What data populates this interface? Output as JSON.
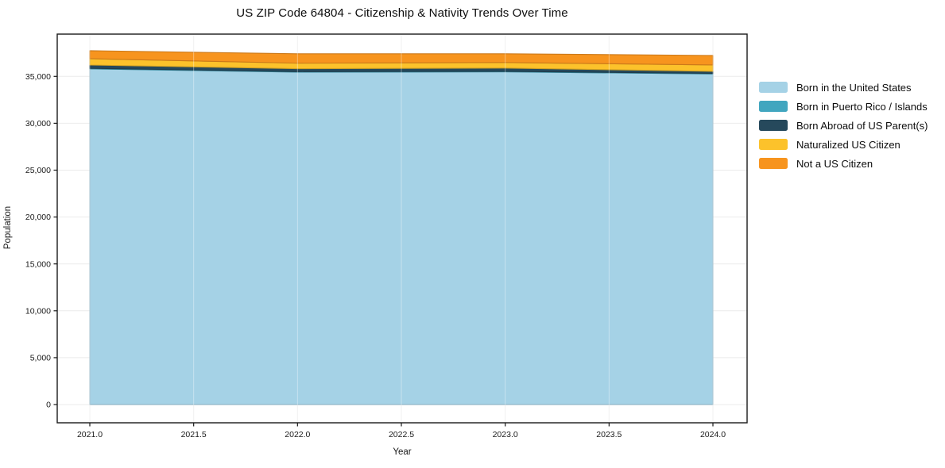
{
  "title": "US ZIP Code 64804 - Citizenship & Nativity Trends Over Time",
  "chart_data": {
    "type": "area",
    "stacked": true,
    "title": "US ZIP Code 64804 - Citizenship & Nativity Trends Over Time",
    "xlabel": "Year",
    "ylabel": "Population",
    "x": [
      2021,
      2022,
      2023,
      2024
    ],
    "series": [
      {
        "name": "Born in the United States",
        "color": "#A5D2E6",
        "values": [
          35800,
          35450,
          35480,
          35260
        ]
      },
      {
        "name": "Born in Puerto Rico / Islands",
        "color": "#41A6BF",
        "values": [
          60,
          60,
          60,
          60
        ]
      },
      {
        "name": "Born Abroad of US Parent(s)",
        "color": "#26495C",
        "values": [
          350,
          310,
          350,
          220
        ]
      },
      {
        "name": "Naturalized US Citizen",
        "color": "#FCC22B",
        "values": [
          680,
          590,
          590,
          680
        ]
      },
      {
        "name": "Not a US Citizen",
        "color": "#F7941E",
        "values": [
          850,
          1000,
          930,
          1010
        ]
      }
    ],
    "totals": [
      37740,
      37410,
      37410,
      37230
    ],
    "xticks": [
      2021.0,
      2021.5,
      2022.0,
      2022.5,
      2023.0,
      2023.5,
      2024.0
    ],
    "xtick_labels": [
      "2021.0",
      "2021.5",
      "2022.0",
      "2022.5",
      "2023.0",
      "2023.5",
      "2024.0"
    ],
    "yticks": [
      0,
      5000,
      10000,
      15000,
      20000,
      25000,
      30000,
      35000
    ],
    "ytick_labels": [
      "0",
      "5,000",
      "10,000",
      "15,000",
      "20,000",
      "25,000",
      "30,000",
      "35,000"
    ],
    "xlim": [
      2020.84,
      2024.16
    ],
    "ylim": [
      -1950,
      39500
    ],
    "grid": true,
    "legend_position": "right-outside",
    "background_color": "#ffffff",
    "gridline_color": "#ebebeb",
    "spine_color": "#1a1a1a"
  }
}
